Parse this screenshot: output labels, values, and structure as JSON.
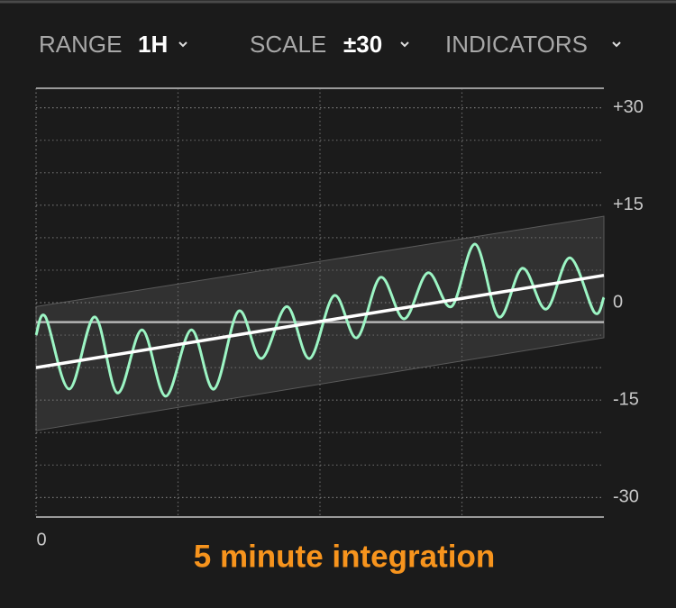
{
  "header": {
    "range_label": "RANGE",
    "range_value": "1H",
    "scale_label": "SCALE",
    "scale_value": "±30",
    "indicators_label": "INDICATORS"
  },
  "chart_data": {
    "type": "line",
    "xlim": [
      0,
      60
    ],
    "xticks": [
      0
    ],
    "minor_xticks": [
      15,
      30,
      45
    ],
    "ylim": [
      -33,
      33
    ],
    "yticks": [
      {
        "value": 30,
        "label": "+30"
      },
      {
        "value": 15,
        "label": "+15"
      },
      0,
      -15,
      -30
    ],
    "minor_yticks": [
      25,
      20,
      10,
      5,
      -5,
      -10,
      -20,
      -25
    ],
    "band": {
      "x": [
        0,
        60
      ],
      "upper": [
        -0.6,
        13.3
      ],
      "lower": [
        -19.7,
        -5.4
      ],
      "color": "#3a3a3a"
    },
    "reference": {
      "value": -3,
      "color": "#b5b5b5"
    },
    "series": [
      {
        "color": "#9cf5c4",
        "x": [
          0,
          1.0,
          3.5,
          6.2,
          8.6,
          11.2,
          13.7,
          16.4,
          18.8,
          21.4,
          23.8,
          26.5,
          28.9,
          31.5,
          33.9,
          36.4,
          38.9,
          41.4,
          43.9,
          46.4,
          48.9,
          51.4,
          53.9,
          56.4,
          59.0,
          60
        ],
        "values": [
          -5,
          -2.2,
          -13.3,
          -2.2,
          -13.9,
          -4.2,
          -14.4,
          -4.2,
          -13.3,
          -1.3,
          -8.6,
          -0.6,
          -8.6,
          1.1,
          -5.4,
          3.9,
          -2.5,
          4.6,
          -0.6,
          9,
          -2.2,
          5.3,
          -1.0,
          6.9,
          -1.5,
          0.8
        ]
      },
      {
        "color": "#ffffff",
        "x": [
          0,
          60
        ],
        "values": [
          -10,
          4.2
        ]
      }
    ],
    "annotation": "5 minute integration"
  }
}
